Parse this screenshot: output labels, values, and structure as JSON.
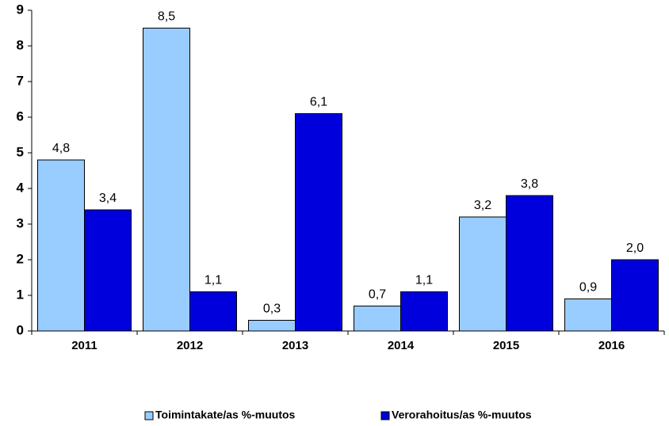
{
  "chart_data": {
    "type": "bar",
    "categories": [
      "2011",
      "2012",
      "2013",
      "2014",
      "2015",
      "2016"
    ],
    "series": [
      {
        "name": "Toimintakate/as %-muutos",
        "color": "#99ccff",
        "values": [
          4.8,
          8.5,
          0.3,
          0.7,
          3.2,
          0.9
        ],
        "value_labels": [
          "4,8",
          "8,5",
          "0,3",
          "0,7",
          "3,2",
          "0,9"
        ]
      },
      {
        "name": "Verorahoitus/as %-muutos",
        "color": "#0000dd",
        "values": [
          3.4,
          1.1,
          6.1,
          1.1,
          3.8,
          2.0
        ],
        "value_labels": [
          "3,4",
          "1,1",
          "6,1",
          "1,1",
          "3,8",
          "2,0"
        ]
      }
    ],
    "ylim": [
      0,
      9
    ],
    "yticks": [
      0,
      1,
      2,
      3,
      4,
      5,
      6,
      7,
      8,
      9
    ],
    "grid": false,
    "legend": "bottom"
  }
}
